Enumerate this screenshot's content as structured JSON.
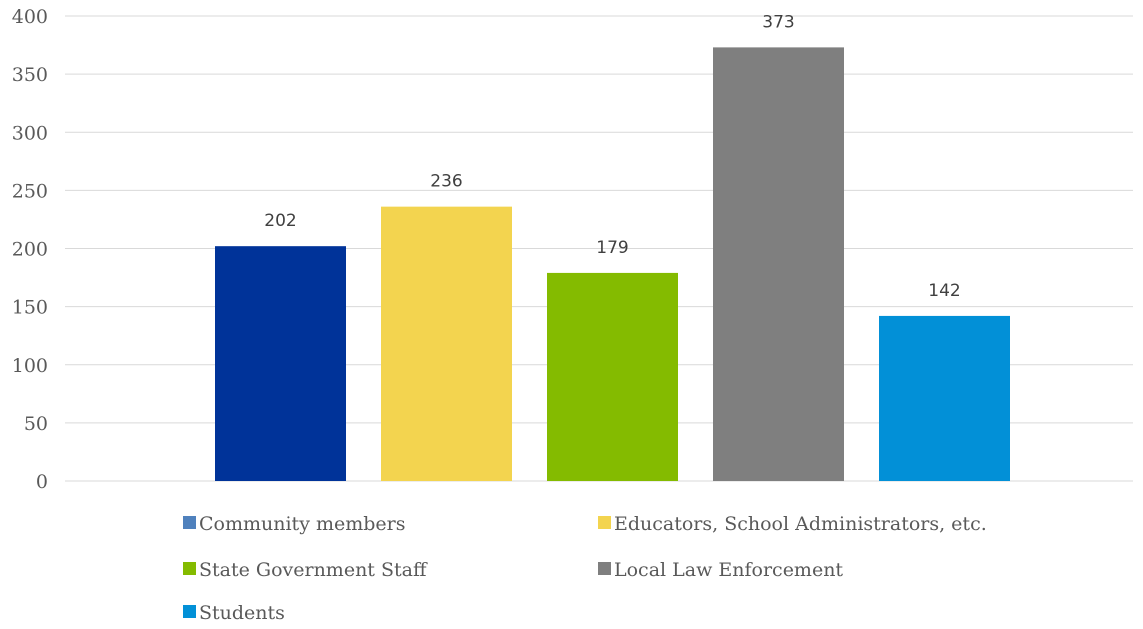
{
  "chart_data": {
    "type": "bar",
    "title": "",
    "xlabel": "",
    "ylabel": "",
    "ylim": [
      0,
      400
    ],
    "yticks": [
      0,
      50,
      100,
      150,
      200,
      250,
      300,
      350,
      400
    ],
    "grid": true,
    "legend_position": "bottom",
    "series": [
      {
        "name": "Community members",
        "value": 202,
        "color": "#003399"
      },
      {
        "name": "Educators, School Administrators, etc.",
        "value": 236,
        "color": "#f3d44f"
      },
      {
        "name": "State Government Staff",
        "value": 179,
        "color": "#84bb00"
      },
      {
        "name": "Local Law Enforcement",
        "value": 373,
        "color": "#7f7f7f"
      },
      {
        "name": "Students",
        "value": 142,
        "color": "#0290d7"
      }
    ],
    "legend_swatch_colors": [
      "#4f81bd",
      "#f3d44f",
      "#84bb00",
      "#7f7f7f",
      "#0290d7"
    ]
  }
}
